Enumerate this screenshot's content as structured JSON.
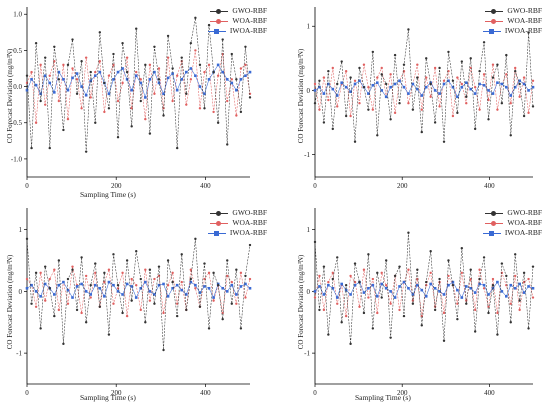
{
  "chart_data": [
    {
      "type": "line",
      "panel": "top-left",
      "xlabel": "Sampling Time (s)",
      "ylabel": "CO Forecast Deviation (mg/m³N)",
      "xlim": [
        0,
        500
      ],
      "ylim": [
        -1.25,
        1.1
      ],
      "xticks": [
        0,
        200,
        400
      ],
      "yticks": [
        -1.0,
        -0.5,
        0.0,
        0.5,
        1.0
      ],
      "ytick_labels": [
        "-1.0",
        "-0.5",
        "0.0",
        "0.5",
        "1.0"
      ],
      "legend_position": "top-right",
      "series": [
        {
          "name": "GWO-RBF",
          "color": "#333333",
          "marker": "circle",
          "values": [
            0.15,
            -0.85,
            0.6,
            -0.2,
            0.4,
            -0.85,
            0.55,
            0.1,
            -0.6,
            0.3,
            0.65,
            -0.1,
            0.35,
            -0.9,
            0.2,
            -0.5,
            0.75,
            0.05,
            -0.3,
            0.45,
            -0.7,
            0.6,
            0.2,
            -0.55,
            0.8,
            -0.2,
            0.3,
            -0.65,
            0.55,
            0.1,
            -0.4,
            0.7,
            0.25,
            -0.85,
            0.4,
            -0.1,
            0.6,
            0.95,
            0.3,
            -0.3,
            0.85,
            0.2,
            -0.5,
            0.65,
            -0.8,
            0.45,
            0.1,
            -0.35,
            0.55,
            -0.15
          ]
        },
        {
          "name": "WOA-RBF",
          "color": "#e06060",
          "marker": "circle",
          "values": [
            0.05,
            0.2,
            -0.5,
            0.3,
            -0.25,
            0.15,
            0.35,
            -0.2,
            0.3,
            -0.45,
            0.25,
            0.1,
            -0.3,
            0.4,
            -0.15,
            0.2,
            0.35,
            -0.35,
            0.15,
            0.3,
            -0.2,
            0.05,
            0.4,
            -0.3,
            0.2,
            0.1,
            -0.45,
            0.3,
            -0.1,
            0.25,
            -0.3,
            0.4,
            -0.2,
            0.15,
            0.35,
            -0.25,
            0.1,
            0.5,
            -0.3,
            0.2,
            0.3,
            -0.35,
            0.15,
            0.45,
            -0.2,
            0.1,
            -0.4,
            0.25,
            0.3,
            -0.1
          ]
        },
        {
          "name": "IWOA-RBF",
          "color": "#3a6ad4",
          "marker": "square",
          "values": [
            -0.05,
            0.1,
            0.02,
            -0.1,
            0.15,
            0.05,
            -0.08,
            0.2,
            0.1,
            -0.05,
            0.12,
            0.18,
            0.0,
            -0.12,
            0.08,
            0.15,
            0.2,
            0.05,
            -0.1,
            0.1,
            0.2,
            0.25,
            0.1,
            -0.05,
            0.15,
            0.05,
            -0.15,
            0.1,
            0.2,
            0.05,
            -0.1,
            0.12,
            0.18,
            -0.05,
            0.1,
            0.2,
            0.25,
            0.15,
            0.0,
            -0.1,
            0.1,
            0.2,
            0.3,
            0.2,
            0.1,
            0.05,
            -0.05,
            0.1,
            0.15,
            0.2
          ]
        }
      ]
    },
    {
      "type": "line",
      "panel": "top-right",
      "xlabel": "",
      "ylabel": "CO Forecast Deviation (mg/m³N)",
      "xlim": [
        0,
        500
      ],
      "ylim": [
        -1.35,
        1.3
      ],
      "xticks": [
        0,
        200,
        400
      ],
      "yticks": [
        -1,
        0,
        1
      ],
      "ytick_labels": [
        "-1",
        "0",
        "1"
      ],
      "legend_position": "top-right",
      "series": [
        {
          "name": "GWO-RBF",
          "color": "#333333",
          "marker": "circle",
          "values": [
            -0.2,
            0.15,
            -0.5,
            0.3,
            -0.6,
            0.1,
            0.45,
            -0.4,
            0.2,
            -0.8,
            0.35,
            0.05,
            -0.3,
            0.6,
            -0.7,
            0.25,
            0.1,
            -0.45,
            0.55,
            -0.2,
            0.4,
            0.95,
            -0.3,
            0.2,
            -0.65,
            0.5,
            0.1,
            -0.5,
            0.35,
            -0.8,
            0.6,
            0.15,
            -0.35,
            0.45,
            -0.1,
            0.5,
            -0.6,
            0.3,
            0.75,
            -0.45,
            0.2,
            0.4,
            -0.2,
            0.55,
            -0.7,
            0.3,
            0.1,
            -0.4,
            0.9,
            -0.25
          ]
        },
        {
          "name": "WOA-RBF",
          "color": "#e06060",
          "marker": "circle",
          "values": [
            0.1,
            -0.3,
            0.2,
            -0.15,
            0.35,
            -0.25,
            0.1,
            0.3,
            -0.4,
            0.15,
            -0.2,
            0.4,
            0.05,
            -0.3,
            0.2,
            0.35,
            -0.1,
            0.25,
            -0.35,
            0.15,
            0.3,
            -0.2,
            0.1,
            0.4,
            -0.3,
            0.2,
            -0.1,
            0.35,
            -0.25,
            0.15,
            0.3,
            -0.4,
            0.2,
            0.1,
            -0.2,
            0.35,
            0.05,
            -0.3,
            0.25,
            -0.15,
            0.4,
            -0.3,
            0.1,
            0.25,
            -0.2,
            0.35,
            -0.1,
            0.2,
            -0.35,
            0.15
          ]
        },
        {
          "name": "IWOA-RBF",
          "color": "#3a6ad4",
          "marker": "square",
          "values": [
            0.0,
            0.05,
            -0.05,
            0.1,
            0.02,
            -0.08,
            0.12,
            0.05,
            -0.02,
            0.1,
            0.15,
            0.05,
            -0.05,
            0.08,
            0.12,
            0.0,
            -0.1,
            0.05,
            0.1,
            0.15,
            0.05,
            -0.05,
            0.1,
            0.02,
            -0.08,
            0.05,
            0.12,
            0.0,
            -0.05,
            0.1,
            0.15,
            0.05,
            -0.1,
            0.05,
            0.12,
            0.02,
            -0.05,
            0.1,
            0.08,
            0.0,
            -0.05,
            0.12,
            0.1,
            0.05,
            -0.08,
            0.05,
            0.15,
            0.1,
            0.0,
            0.05
          ]
        }
      ]
    },
    {
      "type": "line",
      "panel": "bottom-left",
      "xlabel": "Sampling Time (s)",
      "ylabel": "CO Forecast Deviation (mg/m³N)",
      "xlim": [
        0,
        500
      ],
      "ylim": [
        -1.5,
        1.35
      ],
      "xticks": [
        0,
        200,
        400
      ],
      "yticks": [
        -1,
        0,
        1
      ],
      "ytick_labels": [
        "-1",
        "0",
        "1"
      ],
      "legend_position": "top-right",
      "series": [
        {
          "name": "GWO-RBF",
          "color": "#333333",
          "marker": "circle",
          "values": [
            0.85,
            -0.2,
            0.3,
            -0.6,
            0.4,
            0.05,
            -0.4,
            0.5,
            -0.85,
            0.2,
            0.35,
            -0.3,
            0.55,
            -0.5,
            0.1,
            0.45,
            -0.25,
            0.3,
            -0.7,
            0.6,
            0.1,
            -0.35,
            0.5,
            -0.15,
            0.65,
            0.2,
            -0.5,
            0.35,
            -0.2,
            0.4,
            -0.95,
            0.5,
            0.15,
            -0.4,
            0.6,
            -0.3,
            0.2,
            0.85,
            -0.25,
            0.45,
            -0.6,
            0.3,
            0.1,
            -0.45,
            0.5,
            -0.2,
            0.35,
            -0.6,
            0.25,
            0.75
          ]
        },
        {
          "name": "WOA-RBF",
          "color": "#e06060",
          "marker": "circle",
          "values": [
            0.2,
            0.1,
            -0.25,
            0.3,
            -0.15,
            0.2,
            0.35,
            -0.3,
            0.15,
            -0.2,
            0.4,
            0.1,
            -0.35,
            0.25,
            -0.1,
            0.3,
            -0.25,
            0.15,
            0.35,
            -0.2,
            0.05,
            0.3,
            -0.4,
            0.2,
            0.1,
            -0.3,
            0.35,
            -0.15,
            0.2,
            0.25,
            -0.35,
            0.1,
            0.3,
            -0.2,
            0.15,
            -0.3,
            0.35,
            0.05,
            -0.25,
            0.2,
            0.3,
            -0.15,
            0.1,
            -0.35,
            0.25,
            0.15,
            -0.2,
            0.3,
            -0.1,
            0.2
          ]
        },
        {
          "name": "IWOA-RBF",
          "color": "#3a6ad4",
          "marker": "square",
          "values": [
            0.05,
            0.1,
            0.0,
            -0.08,
            0.12,
            0.05,
            -0.05,
            0.1,
            0.15,
            0.02,
            -0.1,
            0.08,
            0.12,
            0.0,
            -0.05,
            0.1,
            0.05,
            -0.08,
            0.15,
            0.1,
            0.0,
            -0.05,
            0.12,
            0.08,
            -0.1,
            0.05,
            0.15,
            0.0,
            -0.05,
            0.1,
            0.12,
            -0.08,
            0.05,
            0.1,
            0.02,
            -0.05,
            0.15,
            0.1,
            -0.02,
            0.08,
            0.05,
            -0.1,
            0.12,
            0.05,
            0.0,
            0.1,
            -0.05,
            0.08,
            0.12,
            0.05
          ]
        }
      ]
    },
    {
      "type": "line",
      "panel": "bottom-right",
      "xlabel": "Sampling Time (s)",
      "ylabel": "CO Forecast Deviation (mg/m³N)",
      "xlim": [
        0,
        500
      ],
      "ylim": [
        -1.5,
        1.35
      ],
      "xticks": [
        0,
        200,
        400
      ],
      "yticks": [
        -1,
        0,
        1
      ],
      "ytick_labels": [
        "-1",
        "0",
        "1"
      ],
      "legend_position": "top-right",
      "series": [
        {
          "name": "GWO-RBF",
          "color": "#333333",
          "marker": "circle",
          "values": [
            0.8,
            -0.3,
            0.4,
            -0.7,
            0.2,
            0.55,
            -0.5,
            0.1,
            -0.85,
            0.45,
            0.15,
            -0.35,
            0.6,
            -0.6,
            0.3,
            -0.1,
            0.5,
            -0.75,
            0.25,
            0.4,
            -0.4,
            0.95,
            -0.2,
            0.35,
            -0.55,
            0.15,
            0.65,
            -0.3,
            0.2,
            -0.8,
            0.5,
            0.1,
            -0.45,
            0.7,
            -0.2,
            0.35,
            -0.65,
            0.2,
            0.55,
            -0.35,
            0.1,
            -0.7,
            0.45,
            0.25,
            -0.5,
            0.6,
            -0.15,
            0.3,
            -0.6,
            0.4
          ]
        },
        {
          "name": "WOA-RBF",
          "color": "#e06060",
          "marker": "circle",
          "values": [
            -0.1,
            0.25,
            -0.3,
            0.15,
            0.3,
            -0.2,
            0.1,
            -0.4,
            0.25,
            0.15,
            -0.25,
            0.35,
            -0.1,
            0.2,
            -0.35,
            0.3,
            0.1,
            -0.2,
            0.25,
            -0.3,
            0.15,
            0.35,
            -0.15,
            0.2,
            -0.4,
            0.1,
            0.3,
            -0.25,
            0.15,
            -0.35,
            0.25,
            0.1,
            -0.2,
            0.3,
            -0.15,
            0.2,
            -0.3,
            0.35,
            0.05,
            -0.25,
            0.2,
            -0.35,
            0.3,
            0.1,
            -0.2,
            0.25,
            -0.3,
            0.15,
            0.2,
            -0.1
          ]
        },
        {
          "name": "IWOA-RBF",
          "color": "#3a6ad4",
          "marker": "square",
          "values": [
            0.0,
            0.08,
            -0.05,
            0.1,
            0.05,
            -0.1,
            0.12,
            0.02,
            -0.05,
            0.1,
            0.15,
            -0.02,
            0.05,
            0.1,
            -0.08,
            0.12,
            0.05,
            0.0,
            -0.1,
            0.08,
            0.15,
            0.05,
            -0.05,
            0.1,
            0.02,
            -0.08,
            0.12,
            0.05,
            0.0,
            -0.05,
            0.1,
            0.15,
            0.02,
            -0.1,
            0.08,
            0.05,
            -0.02,
            0.12,
            0.1,
            -0.05,
            0.05,
            0.15,
            0.0,
            -0.08,
            0.1,
            0.05,
            0.12,
            -0.02,
            0.08,
            0.05
          ]
        }
      ]
    }
  ]
}
